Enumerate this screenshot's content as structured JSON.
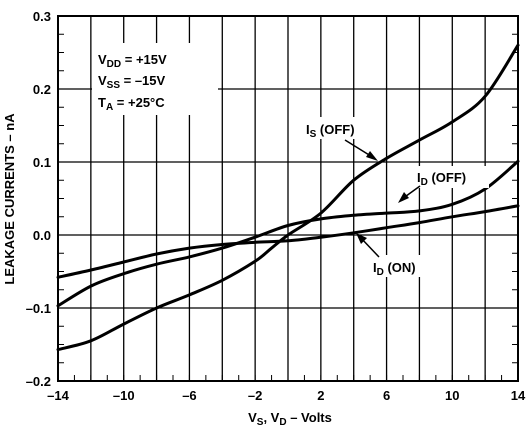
{
  "chart_data": {
    "type": "line",
    "xlabel": {
      "v": "V",
      "s": "S",
      "mid": ", V",
      "d": "D",
      "rest": " – Volts"
    },
    "ylabel": "LEAKAGE CURRENTS – nA",
    "xlim": [
      -14,
      14
    ],
    "ylim": [
      -0.2,
      0.3
    ],
    "x_ticks": [
      "–14",
      "–10",
      "–6",
      "–2",
      "2",
      "6",
      "10",
      "14"
    ],
    "x_tick_values": [
      -14,
      -10,
      -6,
      -2,
      2,
      6,
      10,
      14
    ],
    "x_grid_values": [
      -14,
      -12,
      -10,
      -8,
      -6,
      -4,
      -2,
      0,
      2,
      4,
      6,
      8,
      10,
      12,
      14
    ],
    "y_ticks": [
      "–0.2",
      "–0.1",
      "0.0",
      "0.1",
      "0.2",
      "0.3"
    ],
    "y_tick_values": [
      -0.2,
      -0.1,
      0.0,
      0.1,
      0.2,
      0.3
    ],
    "conditions": [
      {
        "pre": "V",
        "sub": "DD",
        "post": " = +15V"
      },
      {
        "pre": "V",
        "sub": "SS",
        "post": " = –15V"
      },
      {
        "pre": "T",
        "sub": "A",
        "post": " = +25°C"
      }
    ],
    "series": [
      {
        "name_main": "I",
        "name_sub": "S",
        "name_rest": " (OFF)",
        "x": [
          -14,
          -12,
          -10,
          -8,
          -6,
          -4,
          -2,
          -1,
          0,
          2,
          4,
          6,
          8,
          10,
          12,
          14
        ],
        "y": [
          -0.157,
          -0.145,
          -0.122,
          -0.1,
          -0.082,
          -0.062,
          -0.036,
          -0.018,
          0.0,
          0.03,
          0.075,
          0.105,
          0.13,
          0.155,
          0.19,
          0.26
        ]
      },
      {
        "name_main": "I",
        "name_sub": "D",
        "name_rest": " (OFF)",
        "x": [
          -14,
          -12,
          -10,
          -8,
          -6,
          -4,
          -2,
          0,
          2,
          4,
          6,
          8,
          10,
          12,
          14
        ],
        "y": [
          -0.097,
          -0.07,
          -0.053,
          -0.04,
          -0.03,
          -0.018,
          -0.003,
          0.013,
          0.022,
          0.027,
          0.03,
          0.033,
          0.042,
          0.063,
          0.101
        ]
      },
      {
        "name_main": "I",
        "name_sub": "D",
        "name_rest": " (ON)",
        "x": [
          -14,
          -12,
          -10,
          -8,
          -6,
          -4,
          -2,
          0,
          2,
          4,
          6,
          8,
          10,
          12,
          14
        ],
        "y": [
          -0.058,
          -0.048,
          -0.037,
          -0.026,
          -0.018,
          -0.013,
          -0.01,
          -0.008,
          -0.003,
          0.003,
          0.01,
          0.017,
          0.025,
          0.032,
          0.04
        ]
      }
    ]
  }
}
